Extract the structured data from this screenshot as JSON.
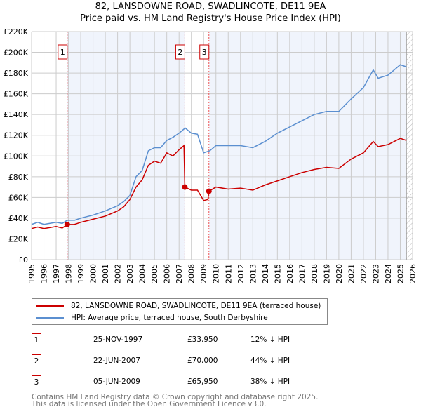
{
  "chart_data": {
    "type": "line",
    "title": "82, LANSDOWNE ROAD, SWADLINCOTE, DE11 9EA",
    "subtitle": "Price paid vs. HM Land Registry's House Price Index (HPI)",
    "xlim": [
      1995,
      2026
    ],
    "ylim": [
      0,
      220000
    ],
    "x_ticks": [
      "1995",
      "1996",
      "1997",
      "1998",
      "1999",
      "2000",
      "2001",
      "2002",
      "2003",
      "2004",
      "2005",
      "2006",
      "2007",
      "2008",
      "2009",
      "2010",
      "2011",
      "2012",
      "2013",
      "2014",
      "2015",
      "2016",
      "2017",
      "2018",
      "2019",
      "2020",
      "2021",
      "2022",
      "2023",
      "2024",
      "2025",
      "2026"
    ],
    "y_ticks": [
      {
        "v": 0,
        "label": "£0"
      },
      {
        "v": 20000,
        "label": "£20K"
      },
      {
        "v": 40000,
        "label": "£40K"
      },
      {
        "v": 60000,
        "label": "£60K"
      },
      {
        "v": 80000,
        "label": "£80K"
      },
      {
        "v": 100000,
        "label": "£100K"
      },
      {
        "v": 120000,
        "label": "£120K"
      },
      {
        "v": 140000,
        "label": "£140K"
      },
      {
        "v": 160000,
        "label": "£160K"
      },
      {
        "v": 180000,
        "label": "£180K"
      },
      {
        "v": 200000,
        "label": "£200K"
      },
      {
        "v": 220000,
        "label": "£220K"
      }
    ],
    "grid": true,
    "series": [
      {
        "name": "82, LANSDOWNE ROAD, SWADLINCOTE, DE11 9EA (terraced house)",
        "color": "#cc0000",
        "x": [
          1995,
          1995.5,
          1996,
          1996.5,
          1997,
          1997.5,
          1997.9,
          1998.5,
          1999,
          2000,
          2001,
          2002,
          2002.5,
          2003,
          2003.5,
          2004,
          2004.5,
          2005,
          2005.5,
          2006,
          2006.5,
          2007,
          2007.4,
          2007.47,
          2008,
          2008.5,
          2009,
          2009.35,
          2009.43,
          2010,
          2011,
          2012,
          2013,
          2014,
          2015,
          2016,
          2017,
          2018,
          2019,
          2020,
          2021,
          2022,
          2022.8,
          2023.2,
          2024,
          2025,
          2025.5
        ],
        "y": [
          30000,
          31500,
          30000,
          31000,
          32000,
          30500,
          33950,
          34000,
          36000,
          39000,
          42000,
          47000,
          51000,
          58000,
          70000,
          77000,
          91000,
          95000,
          93000,
          103000,
          100000,
          106000,
          110000,
          70000,
          67000,
          67000,
          57000,
          58000,
          65950,
          70000,
          68000,
          69000,
          67000,
          72000,
          76000,
          80000,
          84000,
          87000,
          89000,
          88000,
          97000,
          103000,
          114000,
          109000,
          111000,
          117000,
          115000
        ]
      },
      {
        "name": "HPI: Average price, terraced house, South Derbyshire",
        "color": "#5b8fd0",
        "x": [
          1995,
          1995.5,
          1996,
          1996.5,
          1997,
          1997.5,
          1997.9,
          1998.5,
          1999,
          2000,
          2001,
          2002,
          2002.5,
          2003,
          2003.5,
          2004,
          2004.5,
          2005,
          2005.5,
          2006,
          2006.5,
          2007,
          2007.5,
          2008,
          2008.5,
          2009,
          2009.5,
          2010,
          2011,
          2012,
          2013,
          2014,
          2015,
          2016,
          2017,
          2018,
          2019,
          2020,
          2021,
          2022,
          2022.8,
          2023.2,
          2024,
          2025,
          2025.5
        ],
        "y": [
          34000,
          36000,
          34000,
          35000,
          36000,
          35000,
          38000,
          38000,
          40000,
          43000,
          47000,
          52000,
          56000,
          62000,
          80000,
          86000,
          105000,
          108000,
          108000,
          115000,
          118000,
          122000,
          127000,
          122000,
          121000,
          103000,
          105000,
          110000,
          110000,
          110000,
          108000,
          114000,
          122000,
          128000,
          134000,
          140000,
          143000,
          143000,
          155000,
          166000,
          183000,
          175000,
          178000,
          188000,
          186000
        ]
      }
    ],
    "sales": [
      {
        "n": "1",
        "x": 1997.9,
        "y": 33950,
        "date": "25-NOV-1997",
        "price": "£33,950",
        "hpi": "12% ↓ HPI"
      },
      {
        "n": "2",
        "x": 2007.47,
        "y": 70000,
        "date": "22-JUN-2007",
        "price": "£70,000",
        "hpi": "44% ↓ HPI"
      },
      {
        "n": "3",
        "x": 2009.43,
        "y": 65950,
        "date": "05-JUN-2009",
        "price": "£65,950",
        "hpi": "38% ↓ HPI"
      }
    ],
    "forecast_from": 2025.5
  },
  "footer": {
    "line1": "Contains HM Land Registry data © Crown copyright and database right 2025.",
    "line2": "This data is licensed under the Open Government Licence v3.0."
  }
}
